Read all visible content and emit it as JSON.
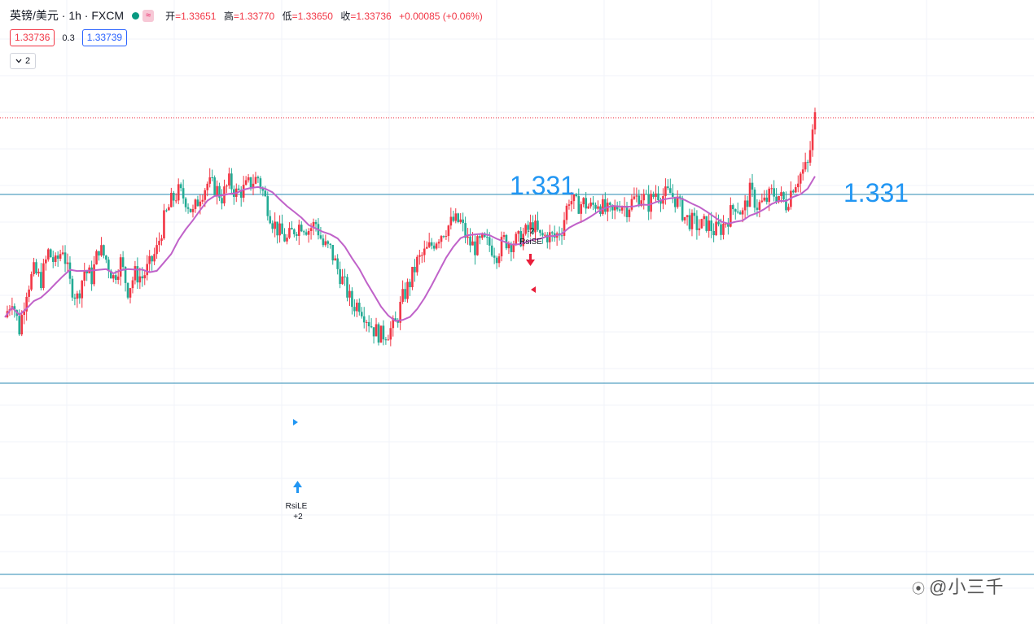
{
  "header": {
    "symbol": "英镑/美元 · 1h · FXCM",
    "approx_badge": "≈",
    "ohlc": {
      "open_label": "开",
      "open": "=1.33651",
      "high_label": "高",
      "high": "=1.33770",
      "low_label": "低",
      "low": "=1.33650",
      "close_label": "收",
      "close": "=1.33736",
      "change": "+0.00085 (+0.06%)"
    }
  },
  "quote": {
    "bid": "1.33736",
    "spread": "0.3",
    "ask": "1.33739"
  },
  "indicators_toggle": {
    "icon": "chevron-down-icon",
    "count": "2"
  },
  "annotations": {
    "level_left": "1.331",
    "level_right": "1.331",
    "short_signal_qty": "-2",
    "short_signal_name": "RsiSE",
    "long_signal_name": "RsiLE",
    "long_signal_qty": "+2"
  },
  "watermark": "@小三千",
  "colors": {
    "up": "#f23645",
    "down": "#22ab94",
    "ma_line": "#c062c9",
    "h_lines": "#2a8ab3",
    "level_text": "#2196f3",
    "price_line": "#f23645"
  },
  "chart_data": {
    "type": "candlestick",
    "symbol": "GBPUSD",
    "timeframe": "1h",
    "horizontal_levels": [
      1.331
    ],
    "last_close": 1.33736,
    "close_series": [
      1.3208,
      1.3224,
      1.3198,
      1.3231,
      1.3246,
      1.3239,
      1.3262,
      1.3252,
      1.3266,
      1.3236,
      1.3224,
      1.3247,
      1.3241,
      1.3266,
      1.3256,
      1.3241,
      1.3254,
      1.3231,
      1.3244,
      1.3241,
      1.3251,
      1.3264,
      1.3289,
      1.3304,
      1.3312,
      1.3306,
      1.3294,
      1.331,
      1.3319,
      1.3316,
      1.3308,
      1.332,
      1.3311,
      1.3314,
      1.332,
      1.3324,
      1.3306,
      1.3288,
      1.3278,
      1.3272,
      1.3281,
      1.3286,
      1.3281,
      1.3286,
      1.3268,
      1.3264,
      1.3248,
      1.3234,
      1.3218,
      1.3219,
      1.3208,
      1.3198,
      1.3193,
      1.3196,
      1.3202,
      1.3224,
      1.3237,
      1.3254,
      1.3261,
      1.3268,
      1.3276,
      1.3282,
      1.3288,
      1.3287,
      1.3271,
      1.3266,
      1.3271,
      1.3268,
      1.3261,
      1.3272,
      1.327,
      1.3272,
      1.3278,
      1.3285,
      1.3274,
      1.3276,
      1.3274,
      1.3282,
      1.3307,
      1.3301,
      1.3303,
      1.3299,
      1.3304,
      1.3296,
      1.3294,
      1.3303,
      1.3299,
      1.3306,
      1.3309,
      1.3302,
      1.3312,
      1.3309,
      1.3311,
      1.3304,
      1.3291,
      1.3287,
      1.3283,
      1.3286,
      1.328,
      1.3282,
      1.3291,
      1.3302,
      1.3294,
      1.3312,
      1.3301,
      1.3303,
      1.3311,
      1.3309,
      1.3302,
      1.3318,
      1.3327,
      1.3334,
      1.3374
    ]
  }
}
